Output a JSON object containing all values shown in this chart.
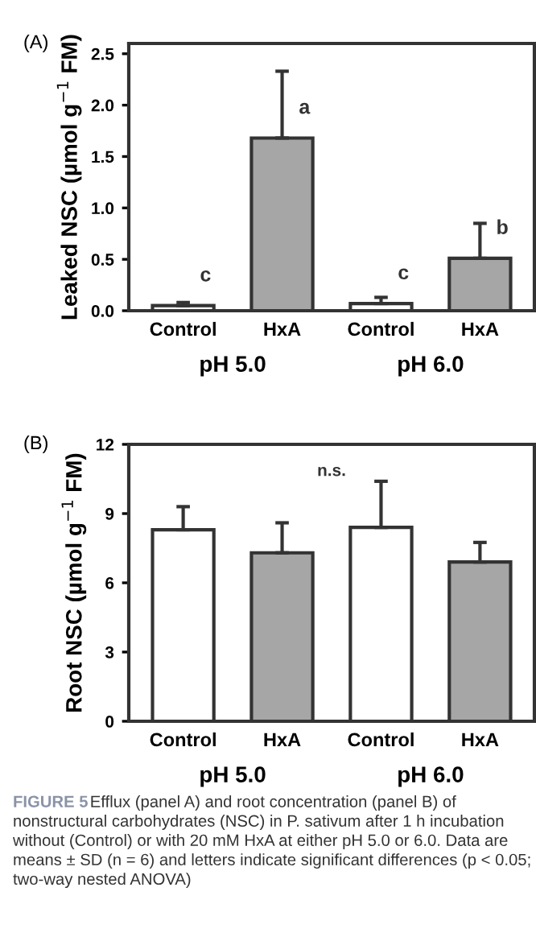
{
  "chart_data": [
    {
      "type": "bar",
      "title": "(A)",
      "ylabel": "Leaked NSC (µmol g$^{−1}$ FM)",
      "categories": [
        "Control",
        "HxA",
        "Control",
        "HxA"
      ],
      "values": [
        0.05,
        1.68,
        0.07,
        0.51
      ],
      "colors": [
        "#ffffff",
        "#a6a6a6",
        "#ffffff",
        "#a6a6a6"
      ],
      "errors": [
        [
          0.05,
          0.08
        ],
        [
          1.68,
          2.33
        ],
        [
          0.07,
          0.13
        ],
        [
          0.51,
          0.85
        ]
      ],
      "value_labels": [
        "c",
        "a",
        "c",
        "b"
      ],
      "ylim": [
        0,
        2.6
      ],
      "yticks": [
        {
          "value": 0,
          "label": "0.0"
        },
        {
          "value": 0.5,
          "label": "0.5"
        },
        {
          "value": 1,
          "label": "1.0"
        },
        {
          "value": 1.5,
          "label": "1.5"
        },
        {
          "value": 2,
          "label": "2.0"
        },
        {
          "value": 2.5,
          "label": "2.5"
        }
      ],
      "annotations": [
        "pH 5.0",
        "pH 6.0"
      ],
      "grid": false,
      "legend": false
    },
    {
      "type": "bar",
      "title": "(B)",
      "ylabel": "Root NSC (µmol g$^{−1}$ FM)",
      "categories": [
        "Control",
        "HxA",
        "Control",
        "HxA"
      ],
      "values": [
        8.3,
        7.3,
        8.4,
        6.9
      ],
      "colors": [
        "#ffffff",
        "#a6a6a6",
        "#ffffff",
        "#a6a6a6"
      ],
      "errors": [
        [
          8.3,
          9.3
        ],
        [
          7.3,
          8.6
        ],
        [
          8.4,
          10.4
        ],
        [
          6.9,
          7.75
        ]
      ],
      "ylim": [
        0,
        12
      ],
      "yticks": [
        0,
        3,
        6,
        9,
        12
      ],
      "annotations": [
        "pH 5.0",
        "pH 6.0",
        "n.s.",
        "FIGURE 5",
        "Efflux (panel A) and root concentration (panel B) of nonstructural carbohydrates (NSC) in P. sativum after 1 h incubation without (Control) or with 20 mM HxA at either pH 5.0 or 6.0. Data are means ± SD (n = 6) and letters indicate significant differences (p < 0.05; two-way nested ANOVA)"
      ],
      "grid": false,
      "legend": false
    }
  ]
}
